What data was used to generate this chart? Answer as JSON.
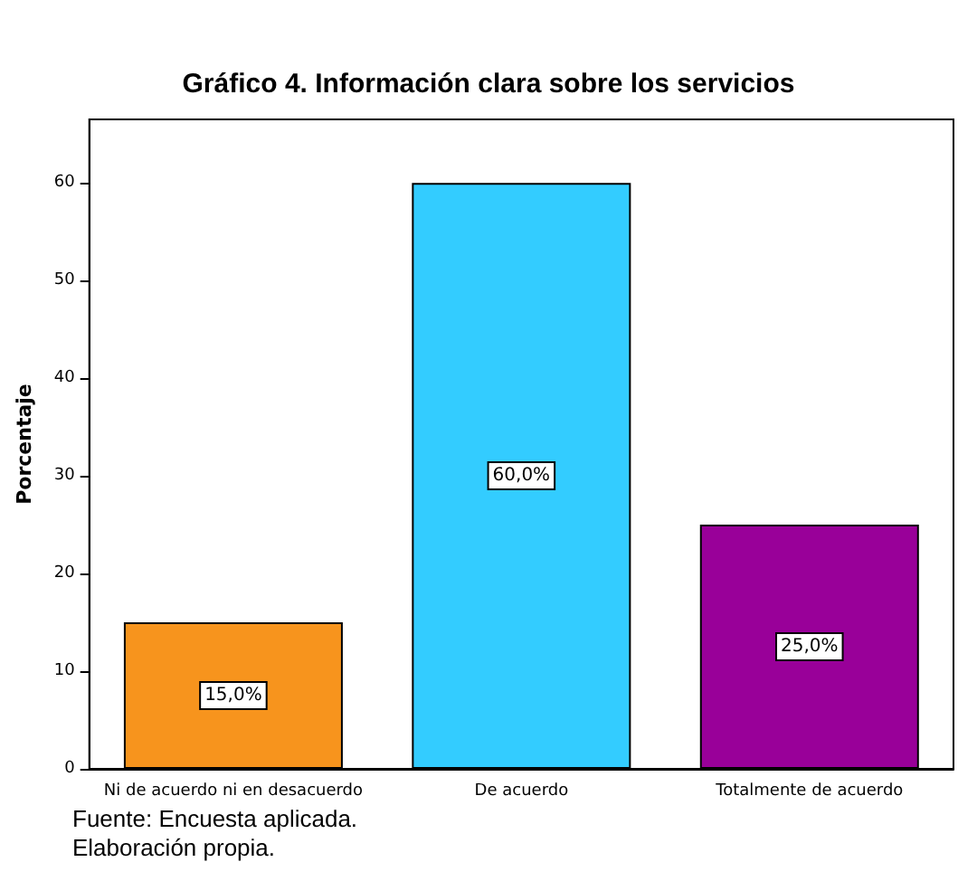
{
  "chart_data": {
    "type": "bar",
    "title": "Gráfico 4. Información clara sobre los servicios",
    "ylabel": "Porcentaje",
    "categories": [
      "Ni de acuerdo ni en desacuerdo",
      "De acuerdo",
      "Totalmente de acuerdo"
    ],
    "values": [
      15,
      60,
      25
    ],
    "colors": [
      "#f7941d",
      "#33ccff",
      "#990099"
    ],
    "value_labels": [
      "15,0%",
      "60,0%",
      "25,0%"
    ],
    "ylim": [
      0,
      66.5
    ],
    "yticks": [
      0,
      10,
      20,
      30,
      40,
      50,
      60
    ],
    "grid": false,
    "annotations": [
      "Fuente: Encuesta aplicada.",
      "Elaboración propia."
    ]
  }
}
